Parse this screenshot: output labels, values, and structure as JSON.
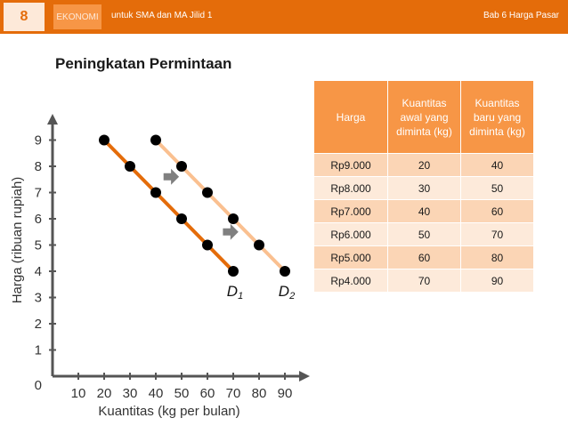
{
  "header": {
    "page_number": "8",
    "subject": "EKONOMI",
    "book_title": "untuk SMA dan MA Jilid 1",
    "chapter": "Bab 6 Harga Pasar"
  },
  "slide_title": "Peningkatan Permintaan",
  "table": {
    "headers": [
      "Harga",
      "Kuantitas awal yang diminta (kg)",
      "Kuantitas baru yang diminta (kg)"
    ],
    "rows": [
      [
        "Rp9.000",
        "20",
        "40"
      ],
      [
        "Rp8.000",
        "30",
        "50"
      ],
      [
        "Rp7.000",
        "40",
        "60"
      ],
      [
        "Rp6.000",
        "50",
        "70"
      ],
      [
        "Rp5.000",
        "60",
        "80"
      ],
      [
        "Rp4.000",
        "70",
        "90"
      ]
    ]
  },
  "colors": {
    "accent": "#e46c0a",
    "d1_line": "#e46c0a",
    "d2_line": "#fac090",
    "table_header": "#f79646",
    "row_odd": "#fbd5b5",
    "row_even": "#fdeada",
    "arrow": "#808080"
  },
  "chart_data": {
    "type": "line",
    "xlabel": "Kuantitas (kg per bulan)",
    "ylabel": "Harga (ribuan rupiah)",
    "xlim": [
      0,
      100
    ],
    "ylim": [
      0,
      10
    ],
    "x_ticks": [
      10,
      20,
      30,
      40,
      50,
      60,
      70,
      80,
      90
    ],
    "y_ticks": [
      1,
      2,
      3,
      4,
      5,
      6,
      7,
      8,
      9
    ],
    "origin_label": "0",
    "series": [
      {
        "name": "D1",
        "x": [
          20,
          30,
          40,
          50,
          60,
          70
        ],
        "y": [
          9,
          8,
          7,
          6,
          5,
          4
        ],
        "color": "#e46c0a"
      },
      {
        "name": "D2",
        "x": [
          40,
          50,
          60,
          70,
          80,
          90
        ],
        "y": [
          9,
          8,
          7,
          6,
          5,
          4
        ],
        "color": "#fac090"
      }
    ],
    "shift_arrows": [
      {
        "x_from": 43,
        "x_to": 49,
        "y": 7.6
      },
      {
        "x_from": 66,
        "x_to": 72,
        "y": 5.5
      }
    ],
    "grid": false
  }
}
